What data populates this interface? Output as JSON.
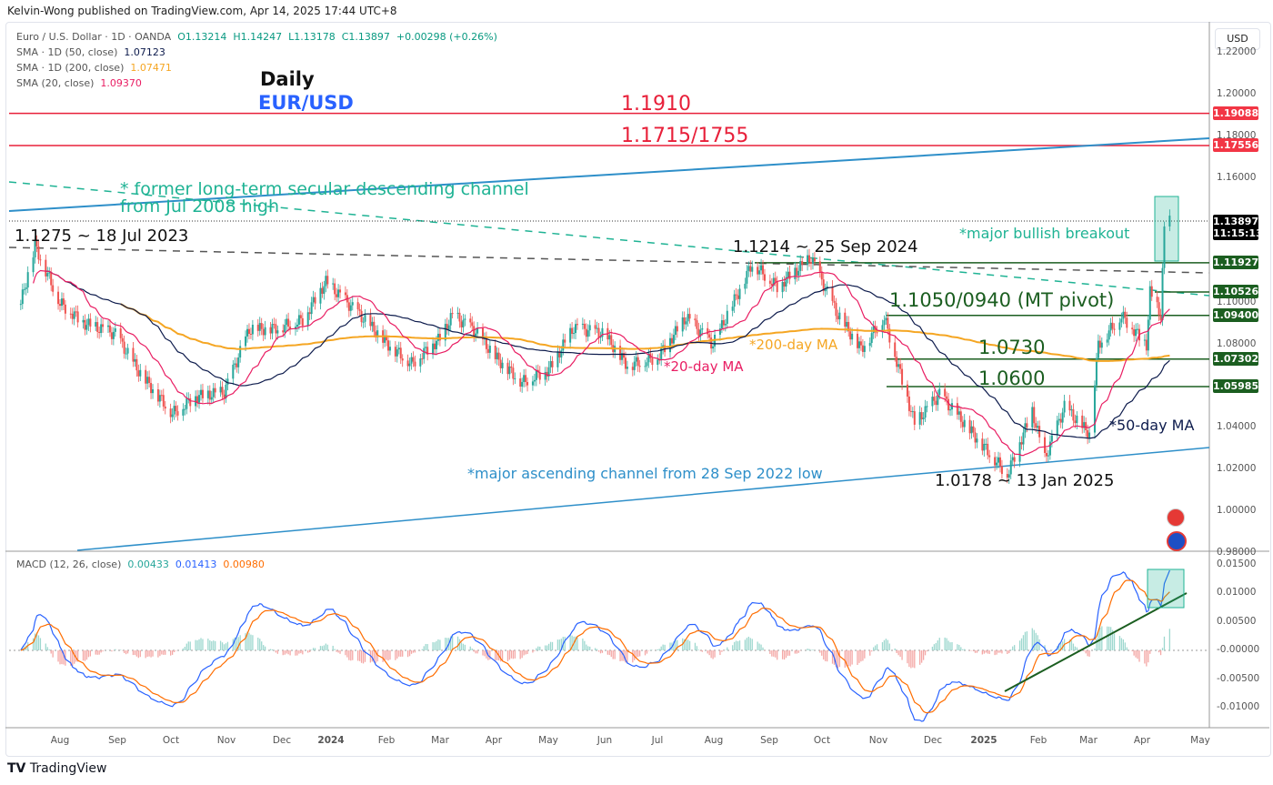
{
  "header": {
    "published": "Kelvin-Wong published on TradingView.com, Apr 14, 2025 17:44 UTC+8"
  },
  "legend": {
    "symbol": "Euro / U.S. Dollar · 1D · OANDA",
    "o": "O1.13214",
    "h": "H1.14247",
    "l": "L1.13178",
    "c": "C1.13897",
    "chg": "+0.00298 (+0.26%)",
    "sma50_label": "SMA · 1D (50, close)",
    "sma50": "1.07123",
    "sma200_label": "SMA · 1D (200, close)",
    "sma200": "1.07471",
    "sma20_label": "SMA (20, close)",
    "sma20": "1.09370",
    "macd_label": "MACD (12, 26, close)",
    "macd_hist": "0.00433",
    "macd": "0.01413",
    "macd_signal": "0.00980"
  },
  "annotations": {
    "daily": "Daily",
    "pair": "EUR/USD",
    "r1910": "1.1910",
    "r1715": "1.1715/1755",
    "channel1": "* former long-term secular descending channel",
    "channel2": "from Jul 2008 high",
    "jul2023": "1.1275 ~ 18 Jul 2023",
    "breakout": "*major bullish breakout",
    "sep2024": "1.1214 ~ 25 Sep 2024",
    "pivot": "1.1050/0940 (MT pivot)",
    "l0730": "1.0730",
    "l0600": "1.0600",
    "ma200": "*200-day MA",
    "ma20": "*20-day MA",
    "ma50": "*50-day MA",
    "asc": "*major ascending channel from 28 Sep 2022 low",
    "jan2025": "1.0178 ~ 13 Jan 2025"
  },
  "price_axis": {
    "currency": "USD",
    "labels": [
      "1.22000",
      "1.20000",
      "1.18000",
      "1.16000",
      "1.10000",
      "1.08000",
      "1.04000",
      "1.02000",
      "1.00000",
      "0.98000"
    ],
    "tags": [
      {
        "v": "1.19088",
        "color": "#f23645"
      },
      {
        "v": "1.17556",
        "color": "#f23645"
      },
      {
        "v": "1.13897",
        "time": "11:15:13",
        "color": "#000000"
      },
      {
        "v": "1.11927",
        "color": "#1b5e20"
      },
      {
        "v": "1.10526",
        "color": "#1b5e20"
      },
      {
        "v": "1.09400",
        "color": "#1b5e20"
      },
      {
        "v": "1.07302",
        "color": "#1b5e20"
      },
      {
        "v": "1.05985",
        "color": "#1b5e20"
      }
    ]
  },
  "macd_axis": {
    "labels": [
      "0.01500",
      "0.01000",
      "0.00500",
      "-0.00000",
      "-0.00500",
      "-0.01000"
    ]
  },
  "time_axis": {
    "labels": [
      "Aug",
      "Sep",
      "Oct",
      "Nov",
      "Dec",
      "2024",
      "Feb",
      "Mar",
      "Apr",
      "May",
      "Jun",
      "Jul",
      "Aug",
      "Sep",
      "Oct",
      "Nov",
      "Dec",
      "2025",
      "Feb",
      "Mar",
      "Apr",
      "May"
    ]
  },
  "footer": {
    "brand": "TradingView"
  },
  "colors": {
    "up": "#26a69a",
    "down": "#ef5350",
    "sma20": "#e91e63",
    "sma50": "#0d1b4c",
    "sma200": "#f5a623",
    "macd": "#2962ff",
    "signal": "#ff6d00",
    "channel": "#2e8fc9",
    "teal": "#1fb394"
  },
  "chart_data": {
    "type": "candlestick",
    "symbol": "EUR/USD",
    "timeframe": "1D",
    "yscale": "price",
    "ylim": [
      0.98,
      1.22
    ],
    "macd_ylim": [
      -0.012,
      0.016
    ],
    "anchors": [
      [
        "2023-07-10",
        1.1
      ],
      [
        "2023-07-18",
        1.1275
      ],
      [
        "2023-08-01",
        1.1
      ],
      [
        "2023-08-15",
        1.09
      ],
      [
        "2023-09-01",
        1.085
      ],
      [
        "2023-09-15",
        1.066
      ],
      [
        "2023-10-03",
        1.047
      ],
      [
        "2023-10-16",
        1.055
      ],
      [
        "2023-11-01",
        1.057
      ],
      [
        "2023-11-15",
        1.087
      ],
      [
        "2023-12-01",
        1.088
      ],
      [
        "2023-12-15",
        1.092
      ],
      [
        "2023-12-28",
        1.11
      ],
      [
        "2024-01-15",
        1.095
      ],
      [
        "2024-02-01",
        1.08
      ],
      [
        "2024-02-14",
        1.071
      ],
      [
        "2024-03-01",
        1.083
      ],
      [
        "2024-03-08",
        1.094
      ],
      [
        "2024-03-20",
        1.087
      ],
      [
        "2024-04-01",
        1.074
      ],
      [
        "2024-04-16",
        1.062
      ],
      [
        "2024-05-01",
        1.068
      ],
      [
        "2024-05-15",
        1.088
      ],
      [
        "2024-06-01",
        1.085
      ],
      [
        "2024-06-14",
        1.07
      ],
      [
        "2024-07-01",
        1.074
      ],
      [
        "2024-07-17",
        1.093
      ],
      [
        "2024-08-01",
        1.08
      ],
      [
        "2024-08-23",
        1.119
      ],
      [
        "2024-09-06",
        1.108
      ],
      [
        "2024-09-25",
        1.1214
      ],
      [
        "2024-10-10",
        1.094
      ],
      [
        "2024-10-23",
        1.078
      ],
      [
        "2024-11-05",
        1.093
      ],
      [
        "2024-11-22",
        1.042
      ],
      [
        "2024-12-06",
        1.056
      ],
      [
        "2024-12-20",
        1.042
      ],
      [
        "2025-01-13",
        1.0178
      ],
      [
        "2025-01-27",
        1.048
      ],
      [
        "2025-02-03",
        1.025
      ],
      [
        "2025-02-14",
        1.05
      ],
      [
        "2025-02-28",
        1.037
      ],
      [
        "2025-03-05",
        1.08
      ],
      [
        "2025-03-18",
        1.094
      ],
      [
        "2025-04-01",
        1.08
      ],
      [
        "2025-04-03",
        1.105
      ],
      [
        "2025-04-09",
        1.094
      ],
      [
        "2025-04-11",
        1.135
      ],
      [
        "2025-04-14",
        1.13897
      ]
    ]
  }
}
